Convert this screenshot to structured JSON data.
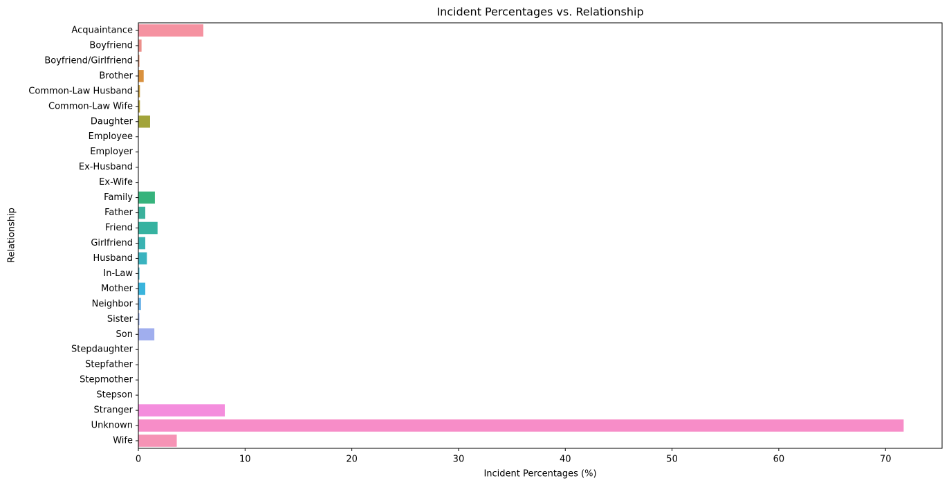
{
  "chart_data": {
    "type": "hbar",
    "title": "Incident Percentages vs. Relationship",
    "xlabel": "Incident Percentages (%)",
    "ylabel": "Relationship",
    "categories": [
      "Acquaintance",
      "Boyfriend",
      "Boyfriend/Girlfriend",
      "Brother",
      "Common-Law Husband",
      "Common-Law Wife",
      "Daughter",
      "Employee",
      "Employer",
      "Ex-Husband",
      "Ex-Wife",
      "Family",
      "Father",
      "Friend",
      "Girlfriend",
      "Husband",
      "In-Law",
      "Mother",
      "Neighbor",
      "Sister",
      "Son",
      "Stepdaughter",
      "Stepfather",
      "Stepmother",
      "Stepson",
      "Stranger",
      "Unknown",
      "Wife"
    ],
    "values": [
      6.09,
      0.3,
      0.1,
      0.5,
      0.15,
      0.15,
      1.1,
      0.02,
      0.02,
      0.02,
      0.02,
      1.55,
      0.65,
      1.8,
      0.65,
      0.8,
      0.1,
      0.65,
      0.25,
      0.1,
      1.5,
      0.02,
      0.02,
      0.01,
      0.02,
      8.1,
      71.7,
      3.6
    ],
    "colors": [
      "#f592a1",
      "#ec8f8a",
      "#e48e6c",
      "#d9913e",
      "#c79a3a",
      "#b4a03a",
      "#a2a43a",
      "#8ea83a",
      "#72ad3a",
      "#3aaf6a",
      "#3ab07e",
      "#36b37c",
      "#3ab19c",
      "#36b2a0",
      "#3ab3b2",
      "#3ab3bf",
      "#3ab4cc",
      "#3ab4dc",
      "#6ab2e6",
      "#90aced",
      "#a0aeee",
      "#bba1f3",
      "#cf99f2",
      "#e190f1",
      "#f08be4",
      "#f48ddd",
      "#f78dc8",
      "#f693b5"
    ],
    "xlim": [
      0,
      75.3
    ],
    "xticks": [
      0,
      10,
      20,
      30,
      40,
      50,
      60,
      70
    ],
    "grid": false
  }
}
